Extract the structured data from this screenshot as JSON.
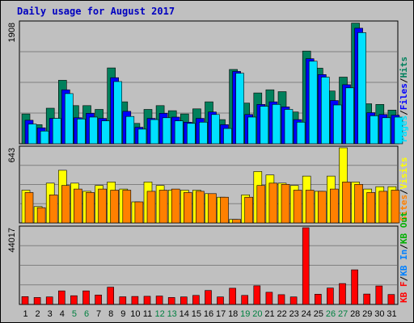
{
  "title": "Daily usage for August 2017",
  "colors": {
    "background": "#c0c0c0",
    "panel_bg": "#c0c0c0",
    "hits": "#00805c",
    "files": "#0000ff",
    "pages": "#00e0ff",
    "visits": "#ffff00",
    "sites": "#ff8000",
    "kbytes": "#ff0000",
    "title": "#0000c0",
    "weekend_label": "#008040",
    "weekday_label": "#000000"
  },
  "chart_data": [
    {
      "type": "bar",
      "panel": "hits-files-pages",
      "ymax_label": "1908",
      "ylim": [
        0,
        1908
      ],
      "legend": [
        {
          "text": "Pages",
          "color": "#00e0ff"
        },
        {
          "text": "Files",
          "color": "#0000ff"
        },
        {
          "text": "Hits",
          "color": "#00805c"
        }
      ],
      "separators": [
        "/",
        "/"
      ],
      "categories": [
        "1",
        "2",
        "3",
        "4",
        "5",
        "6",
        "7",
        "8",
        "9",
        "10",
        "11",
        "12",
        "13",
        "14",
        "15",
        "16",
        "17",
        "18",
        "19",
        "20",
        "21",
        "22",
        "23",
        "24",
        "25",
        "26",
        "27",
        "28",
        "29",
        "30",
        "31"
      ],
      "series": [
        {
          "name": "Hits",
          "values": [
            470,
            300,
            560,
            1000,
            600,
            600,
            540,
            1195,
            660,
            320,
            540,
            600,
            520,
            470,
            550,
            660,
            380,
            1170,
            640,
            800,
            850,
            820,
            500,
            1460,
            1190,
            830,
            1050,
            1900,
            630,
            620,
            530
          ]
        },
        {
          "name": "Files",
          "values": [
            370,
            250,
            400,
            850,
            410,
            480,
            400,
            1040,
            510,
            260,
            400,
            480,
            420,
            340,
            400,
            500,
            300,
            1140,
            460,
            620,
            660,
            580,
            380,
            1340,
            1090,
            680,
            930,
            1820,
            490,
            460,
            450
          ]
        },
        {
          "name": "Pages",
          "values": [
            310,
            200,
            400,
            790,
            390,
            420,
            360,
            980,
            430,
            230,
            380,
            410,
            360,
            320,
            340,
            460,
            240,
            1110,
            420,
            590,
            620,
            540,
            340,
            1300,
            1050,
            610,
            880,
            1750,
            440,
            410,
            420
          ]
        }
      ]
    },
    {
      "type": "bar",
      "panel": "visits-sites",
      "ymax_label": "643",
      "ylim": [
        0,
        643
      ],
      "legend": [
        {
          "text": "Sites",
          "color": "#ff8000"
        },
        {
          "text": "Visits",
          "color": "#ffff00"
        }
      ],
      "separators": [
        "/"
      ],
      "categories": [
        "1",
        "2",
        "3",
        "4",
        "5",
        "6",
        "7",
        "8",
        "9",
        "10",
        "11",
        "12",
        "13",
        "14",
        "15",
        "16",
        "17",
        "18",
        "19",
        "20",
        "21",
        "22",
        "23",
        "24",
        "25",
        "26",
        "27",
        "28",
        "29",
        "30",
        "31"
      ],
      "series": [
        {
          "name": "Visits",
          "values": [
            280,
            140,
            340,
            450,
            340,
            270,
            320,
            350,
            290,
            180,
            350,
            320,
            280,
            280,
            280,
            250,
            220,
            30,
            240,
            440,
            410,
            340,
            320,
            400,
            270,
            400,
            643,
            350,
            290,
            310,
            310
          ]
        },
        {
          "name": "Sites",
          "values": [
            260,
            130,
            240,
            320,
            290,
            260,
            290,
            280,
            280,
            180,
            270,
            280,
            290,
            260,
            270,
            250,
            220,
            30,
            220,
            320,
            340,
            330,
            280,
            280,
            270,
            290,
            350,
            330,
            260,
            270,
            280
          ]
        }
      ]
    },
    {
      "type": "bar",
      "panel": "kbytes-traffic",
      "ymax_label": "44017",
      "ylim": [
        0,
        44017
      ],
      "legend": [
        {
          "text": "KB F",
          "color": "#ff0000"
        },
        {
          "text": "KB In",
          "color": "#0080ff"
        },
        {
          "text": "KB Out",
          "color": "#00b000"
        }
      ],
      "separators": [
        "/",
        "/"
      ],
      "categories": [
        "1",
        "2",
        "3",
        "4",
        "5",
        "6",
        "7",
        "8",
        "9",
        "10",
        "11",
        "12",
        "13",
        "14",
        "15",
        "16",
        "17",
        "18",
        "19",
        "20",
        "21",
        "22",
        "23",
        "24",
        "25",
        "26",
        "27",
        "28",
        "29",
        "30",
        "31"
      ],
      "series": [
        {
          "name": "KB F",
          "values": [
            4500,
            4000,
            4300,
            7800,
            5000,
            7800,
            5400,
            9900,
            4400,
            4600,
            4700,
            4800,
            4000,
            4300,
            5200,
            8000,
            4300,
            9300,
            5200,
            10700,
            7000,
            5600,
            4300,
            44017,
            5900,
            9400,
            12000,
            19900,
            6000,
            10600,
            5700
          ]
        }
      ]
    }
  ],
  "x_axis": {
    "labels": [
      "1",
      "2",
      "3",
      "4",
      "5",
      "6",
      "7",
      "8",
      "9",
      "10",
      "11",
      "12",
      "13",
      "14",
      "15",
      "16",
      "17",
      "18",
      "19",
      "20",
      "21",
      "22",
      "23",
      "24",
      "25",
      "26",
      "27",
      "28",
      "29",
      "30",
      "31"
    ],
    "weekend_days": [
      "5",
      "6",
      "12",
      "13",
      "19",
      "20",
      "26",
      "27"
    ]
  }
}
